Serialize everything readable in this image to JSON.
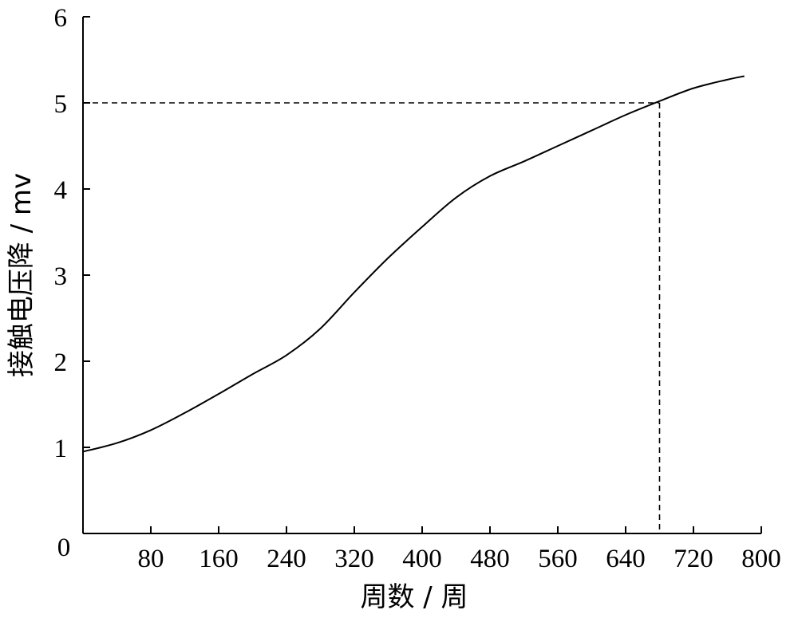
{
  "chart_data": {
    "type": "line",
    "xlabel": "周数 / 周",
    "ylabel": "接触电压降 / mv",
    "xlim": [
      0,
      800
    ],
    "ylim": [
      0,
      6
    ],
    "x_ticks": [
      80,
      160,
      240,
      320,
      400,
      480,
      560,
      640,
      720,
      800
    ],
    "y_ticks": [
      1,
      2,
      3,
      4,
      5,
      6
    ],
    "origin_label": "0",
    "grid": false,
    "series": [
      {
        "x": [
          0,
          40,
          80,
          120,
          160,
          200,
          240,
          280,
          320,
          360,
          400,
          440,
          480,
          520,
          560,
          600,
          640,
          680,
          720,
          760,
          780
        ],
        "y": [
          0.95,
          1.05,
          1.2,
          1.4,
          1.62,
          1.85,
          2.07,
          2.38,
          2.8,
          3.2,
          3.56,
          3.9,
          4.15,
          4.32,
          4.5,
          4.68,
          4.86,
          5.02,
          5.17,
          5.27,
          5.31
        ]
      }
    ],
    "annotations": [
      {
        "type": "dashed-guide",
        "x": 680,
        "y": 5
      }
    ]
  }
}
